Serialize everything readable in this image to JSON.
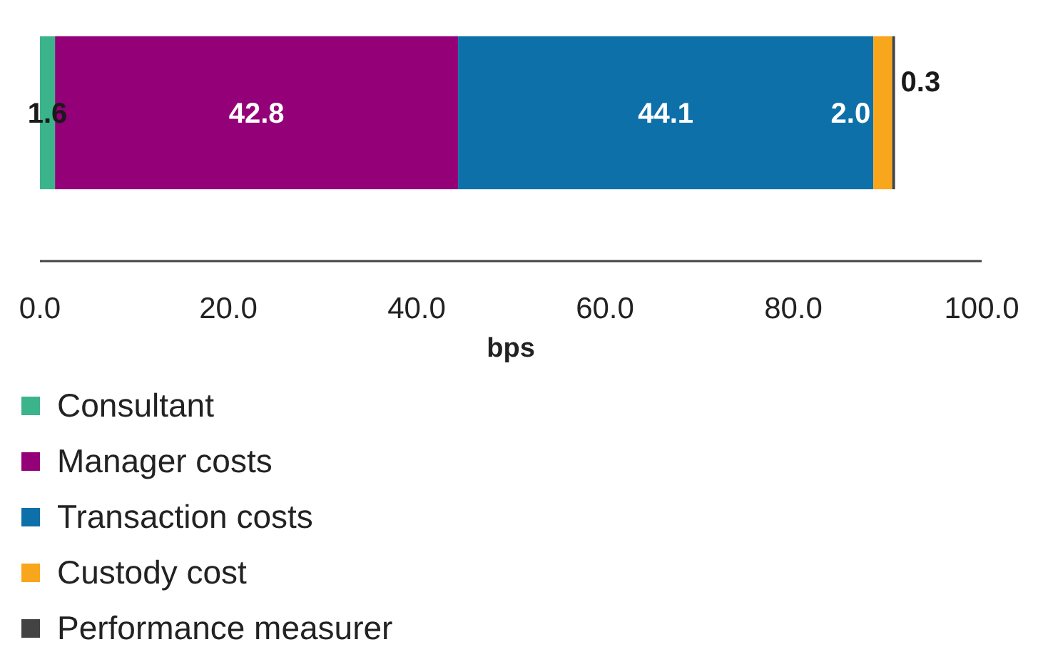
{
  "chart_data": {
    "type": "bar",
    "orientation": "horizontal",
    "stacked": true,
    "categories": [
      null
    ],
    "xlabel": "bps",
    "xlim": [
      0,
      100
    ],
    "xticks": [
      {
        "value": 0,
        "label": "0.0"
      },
      {
        "value": 20,
        "label": "20.0"
      },
      {
        "value": 40,
        "label": "40.0"
      },
      {
        "value": 60,
        "label": "60.0"
      },
      {
        "value": 80,
        "label": "80.0"
      },
      {
        "value": 100,
        "label": "100.0"
      }
    ],
    "series": [
      {
        "name": "Consultant",
        "color": "#3bb48c",
        "values": [
          1.6
        ],
        "value_labels": [
          "1.6"
        ]
      },
      {
        "name": "Manager costs",
        "color": "#930077",
        "values": [
          42.8
        ],
        "value_labels": [
          "42.8"
        ]
      },
      {
        "name": "Transaction costs",
        "color": "#0e70a8",
        "values": [
          44.1
        ],
        "value_labels": [
          "44.1"
        ]
      },
      {
        "name": "Custody cost",
        "color": "#f8a61c",
        "values": [
          2.0
        ],
        "value_labels": [
          "2.0"
        ]
      },
      {
        "name": "Performance measurer",
        "color": "#434343",
        "values": [
          0.3
        ],
        "value_labels": [
          "0.3"
        ]
      }
    ],
    "legend": "bottom"
  }
}
